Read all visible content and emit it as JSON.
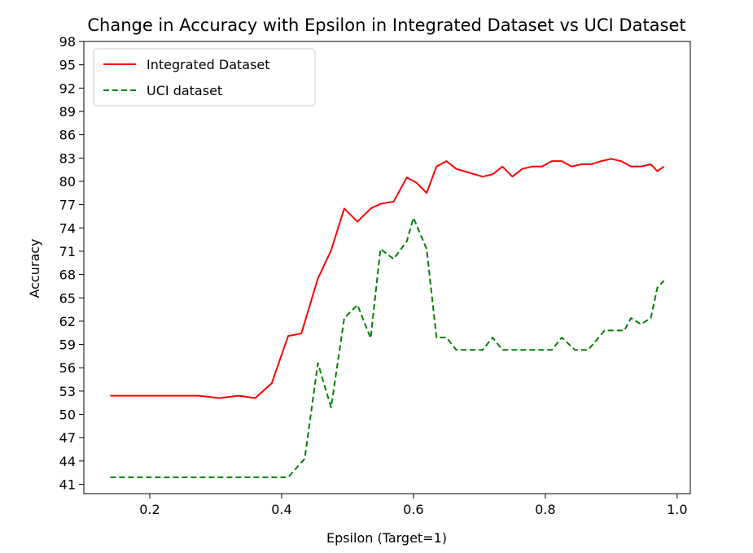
{
  "chart_data": {
    "type": "line",
    "title": "Change in Accuracy with Epsilon in Integrated Dataset vs UCI Dataset",
    "xlabel": "Epsilon (Target=1)",
    "ylabel": "Accuracy",
    "xlim": [
      0.1,
      1.02
    ],
    "ylim": [
      39.8,
      98
    ],
    "xticks": [
      "0.2",
      "0.4",
      "0.6",
      "0.8",
      "1.0"
    ],
    "yticks": [
      "41",
      "44",
      "47",
      "50",
      "53",
      "56",
      "59",
      "62",
      "65",
      "68",
      "71",
      "74",
      "77",
      "80",
      "83",
      "86",
      "89",
      "92",
      "95",
      "98"
    ],
    "grid": false,
    "legend_position": "top-left",
    "series": [
      {
        "name": "Integrated Dataset",
        "color": "#ff0000",
        "style": "solid",
        "x": [
          0.14,
          0.17,
          0.21,
          0.24,
          0.275,
          0.305,
          0.335,
          0.36,
          0.385,
          0.41,
          0.43,
          0.455,
          0.475,
          0.495,
          0.515,
          0.535,
          0.55,
          0.57,
          0.59,
          0.605,
          0.62,
          0.635,
          0.65,
          0.665,
          0.685,
          0.705,
          0.72,
          0.735,
          0.75,
          0.765,
          0.78,
          0.795,
          0.81,
          0.825,
          0.84,
          0.855,
          0.87,
          0.885,
          0.9,
          0.915,
          0.93,
          0.945,
          0.96,
          0.97,
          0.98
        ],
        "y": [
          52.4,
          52.4,
          52.4,
          52.4,
          52.4,
          52.1,
          52.4,
          52.1,
          54,
          60.1,
          60.4,
          67.5,
          71.1,
          76.5,
          74.8,
          76.5,
          77.1,
          77.4,
          80.5,
          79.8,
          78.5,
          81.9,
          82.6,
          81.6,
          81.1,
          80.6,
          80.9,
          81.9,
          80.6,
          81.6,
          81.9,
          81.9,
          82.6,
          82.6,
          81.9,
          82.2,
          82.2,
          82.6,
          82.9,
          82.6,
          81.9,
          81.9,
          82.2,
          81.3,
          81.9
        ]
      },
      {
        "name": "UCI dataset",
        "color": "#008000",
        "style": "dashed",
        "x": [
          0.14,
          0.17,
          0.21,
          0.24,
          0.275,
          0.305,
          0.335,
          0.36,
          0.385,
          0.41,
          0.435,
          0.455,
          0.475,
          0.495,
          0.515,
          0.535,
          0.55,
          0.57,
          0.59,
          0.6,
          0.62,
          0.635,
          0.65,
          0.665,
          0.685,
          0.705,
          0.72,
          0.735,
          0.75,
          0.77,
          0.79,
          0.81,
          0.825,
          0.845,
          0.865,
          0.89,
          0.905,
          0.92,
          0.93,
          0.945,
          0.96,
          0.97,
          0.98
        ],
        "y": [
          41.9,
          41.9,
          41.9,
          41.9,
          41.9,
          41.9,
          41.9,
          41.9,
          41.9,
          41.9,
          44.3,
          56.6,
          50.9,
          62.4,
          64.1,
          59.8,
          71.3,
          70,
          72.3,
          75.3,
          71.3,
          59.9,
          59.9,
          58.3,
          58.3,
          58.3,
          59.9,
          58.3,
          58.3,
          58.3,
          58.3,
          58.3,
          59.9,
          58.3,
          58.3,
          60.8,
          60.8,
          60.8,
          62.4,
          61.6,
          62.4,
          66.3,
          67.2
        ]
      }
    ]
  }
}
